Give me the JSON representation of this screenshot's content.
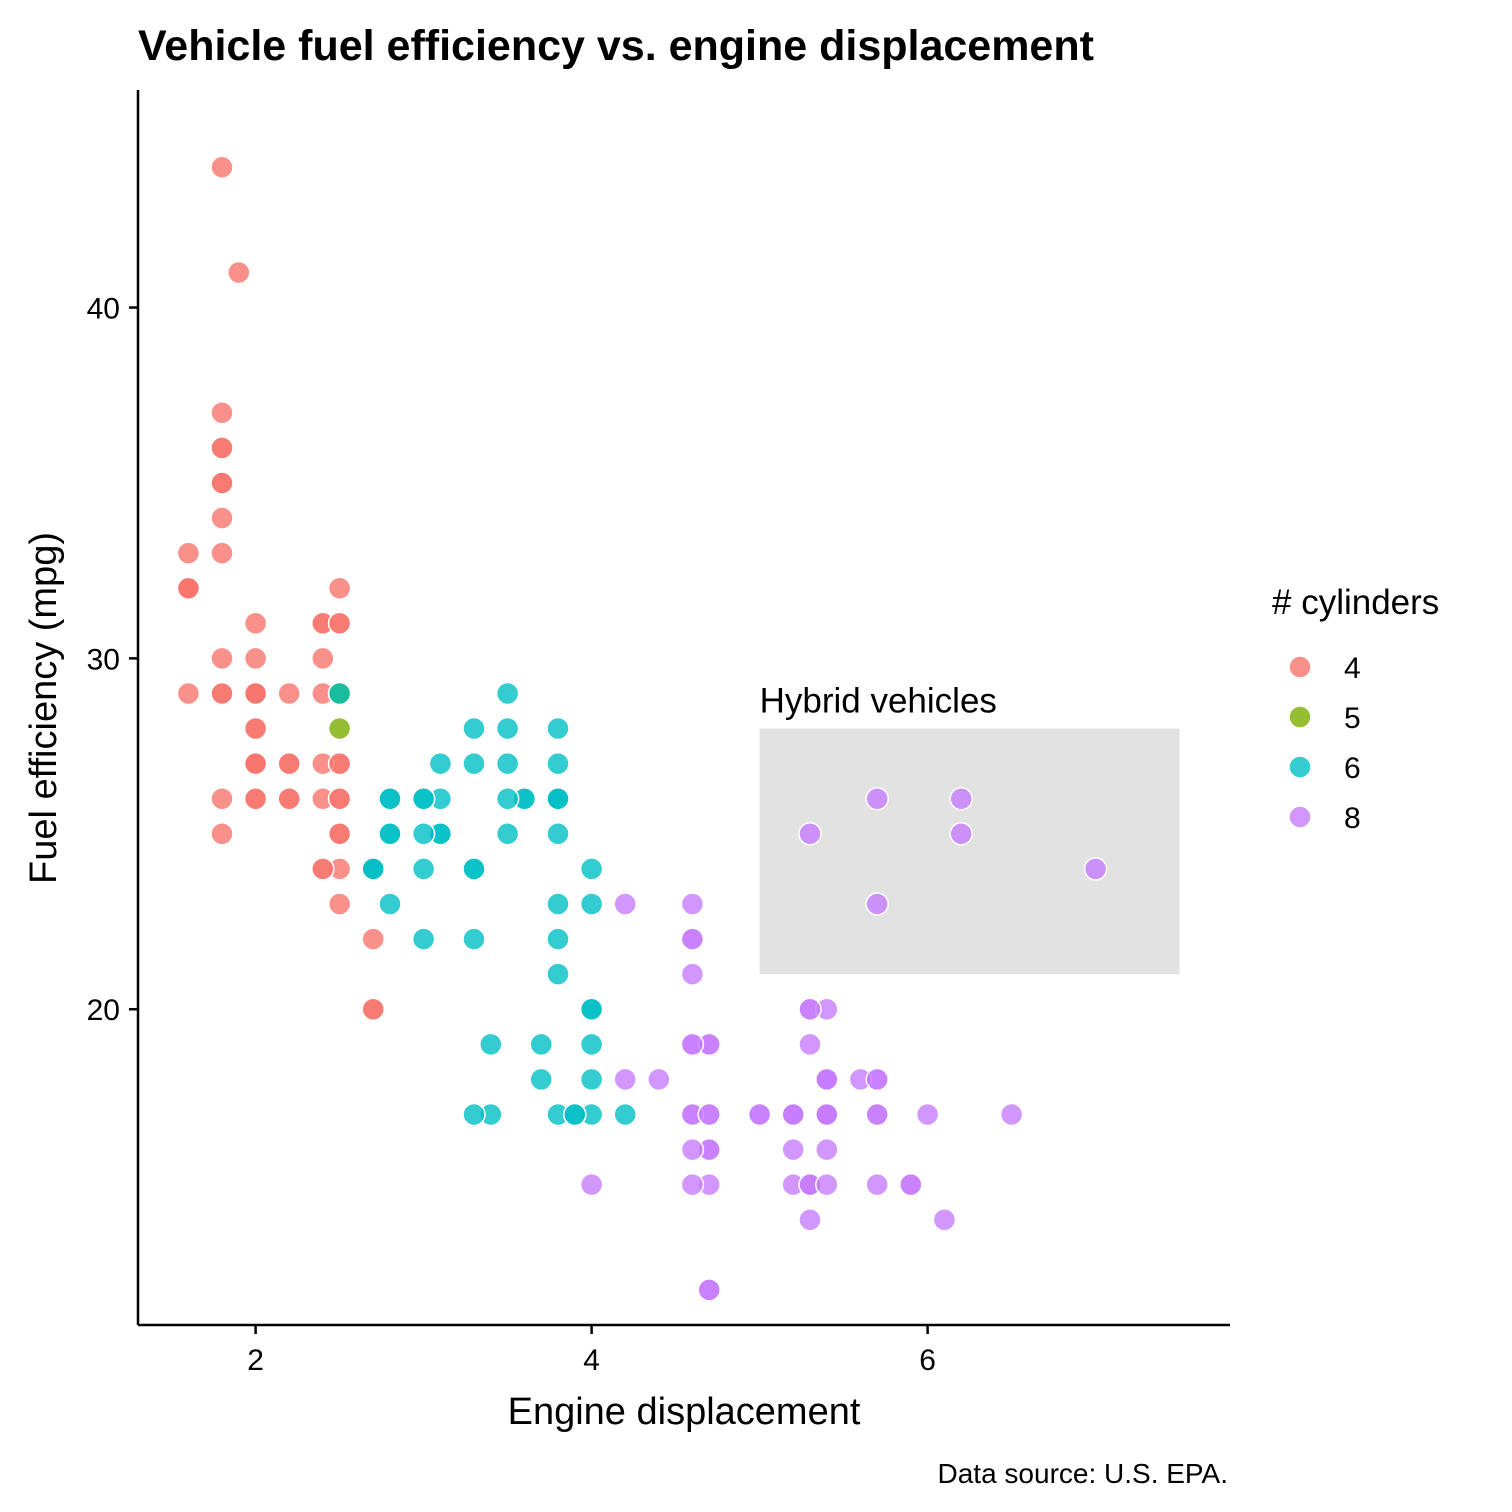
{
  "chart_data": {
    "type": "scatter",
    "title": "Vehicle fuel efficiency vs. engine displacement",
    "xlabel": "Engine displacement",
    "ylabel": "Fuel efficiency (mpg)",
    "caption": "Data source: U.S. EPA.",
    "xlim": [
      1.3,
      7.8
    ],
    "ylim": [
      11.0,
      46.2
    ],
    "xticks": [
      2,
      4,
      6
    ],
    "yticks": [
      20,
      30,
      40
    ],
    "grid": false,
    "legend": {
      "title": "# cylinders",
      "position": "right",
      "entries": [
        "4",
        "5",
        "6",
        "8"
      ]
    },
    "colors": {
      "4": "#F8766D",
      "5": "#7CAE00",
      "6": "#00BFC4",
      "8": "#C77CFF"
    },
    "annotation": {
      "label": "Hybrid vehicles",
      "x_range": [
        5.0,
        7.5
      ],
      "y_range": [
        21,
        28
      ],
      "fill": "#e2e2e2"
    },
    "series": [
      {
        "name": "4",
        "points": [
          [
            1.8,
            29
          ],
          [
            1.8,
            29
          ],
          [
            2.0,
            31
          ],
          [
            2.0,
            30
          ],
          [
            1.8,
            26
          ],
          [
            1.8,
            25
          ],
          [
            2.0,
            28
          ],
          [
            2.0,
            27
          ],
          [
            2.0,
            28
          ],
          [
            2.0,
            26
          ],
          [
            2.2,
            26
          ],
          [
            2.2,
            27
          ],
          [
            2.4,
            30
          ],
          [
            2.4,
            31
          ],
          [
            2.4,
            31
          ],
          [
            2.4,
            26
          ],
          [
            2.5,
            27
          ],
          [
            2.5,
            25
          ],
          [
            2.5,
            25
          ],
          [
            2.5,
            24
          ],
          [
            2.5,
            23
          ],
          [
            2.5,
            26
          ],
          [
            2.4,
            24
          ],
          [
            2.5,
            32
          ],
          [
            1.6,
            33
          ],
          [
            1.6,
            32
          ],
          [
            1.6,
            32
          ],
          [
            1.6,
            29
          ],
          [
            1.6,
            32
          ],
          [
            1.8,
            34
          ],
          [
            1.8,
            36
          ],
          [
            1.8,
            36
          ],
          [
            2.0,
            29
          ],
          [
            2.0,
            26
          ],
          [
            2.0,
            27
          ],
          [
            2.0,
            27
          ],
          [
            2.4,
            29
          ],
          [
            2.4,
            27
          ],
          [
            2.2,
            29
          ],
          [
            2.2,
            27
          ],
          [
            2.2,
            26
          ],
          [
            2.5,
            26
          ],
          [
            2.5,
            27
          ],
          [
            2.7,
            20
          ],
          [
            2.7,
            22
          ],
          [
            2.7,
            20
          ],
          [
            1.8,
            44
          ],
          [
            1.9,
            41
          ],
          [
            1.8,
            37
          ],
          [
            1.8,
            35
          ],
          [
            1.8,
            35
          ],
          [
            1.8,
            33
          ],
          [
            1.8,
            30
          ],
          [
            2.0,
            29
          ],
          [
            2.0,
            29
          ],
          [
            2.5,
            31
          ],
          [
            2.5,
            31
          ],
          [
            2.4,
            24
          ]
        ]
      },
      {
        "name": "5",
        "points": [
          [
            2.5,
            29
          ],
          [
            2.5,
            29
          ],
          [
            2.5,
            28
          ],
          [
            2.5,
            29
          ]
        ]
      },
      {
        "name": "6",
        "points": [
          [
            2.8,
            26
          ],
          [
            2.8,
            26
          ],
          [
            3.1,
            27
          ],
          [
            2.8,
            25
          ],
          [
            3.1,
            25
          ],
          [
            3.1,
            26
          ],
          [
            3.1,
            25
          ],
          [
            3.8,
            27
          ],
          [
            3.8,
            26
          ],
          [
            4.0,
            24
          ],
          [
            3.3,
            24
          ],
          [
            3.3,
            22
          ],
          [
            3.3,
            24
          ],
          [
            3.8,
            22
          ],
          [
            3.8,
            21
          ],
          [
            3.8,
            23
          ],
          [
            4.0,
            23
          ],
          [
            3.8,
            26
          ],
          [
            2.5,
            29
          ],
          [
            2.8,
            25
          ],
          [
            2.7,
            24
          ],
          [
            2.7,
            24
          ],
          [
            3.0,
            26
          ],
          [
            3.0,
            26
          ],
          [
            3.0,
            25
          ],
          [
            3.0,
            24
          ],
          [
            3.5,
            29
          ],
          [
            3.5,
            28
          ],
          [
            3.5,
            25
          ],
          [
            3.6,
            26
          ],
          [
            3.6,
            26
          ],
          [
            3.5,
            27
          ],
          [
            3.5,
            26
          ],
          [
            3.8,
            28
          ],
          [
            3.8,
            26
          ],
          [
            3.3,
            28
          ],
          [
            3.3,
            27
          ],
          [
            3.8,
            25
          ],
          [
            3.7,
            19
          ],
          [
            3.7,
            18
          ],
          [
            4.0,
            20
          ],
          [
            4.0,
            19
          ],
          [
            4.0,
            18
          ],
          [
            4.2,
            17
          ],
          [
            3.4,
            17
          ],
          [
            3.4,
            19
          ],
          [
            4.0,
            17
          ],
          [
            4.0,
            20
          ],
          [
            3.3,
            17
          ],
          [
            3.8,
            17
          ],
          [
            3.9,
            17
          ],
          [
            3.9,
            17
          ],
          [
            2.8,
            23
          ],
          [
            3.0,
            22
          ],
          [
            2.7,
            24
          ]
        ]
      },
      {
        "name": "8",
        "points": [
          [
            5.7,
            26
          ],
          [
            5.7,
            23
          ],
          [
            6.2,
            26
          ],
          [
            6.2,
            25
          ],
          [
            7.0,
            24
          ],
          [
            5.3,
            25
          ],
          [
            5.3,
            15
          ],
          [
            5.7,
            18
          ],
          [
            6.5,
            17
          ],
          [
            5.2,
            17
          ],
          [
            5.2,
            15
          ],
          [
            4.7,
            12
          ],
          [
            5.2,
            16
          ],
          [
            5.9,
            15
          ],
          [
            4.7,
            12
          ],
          [
            5.2,
            17
          ],
          [
            4.7,
            17
          ],
          [
            4.7,
            19
          ],
          [
            5.3,
            15
          ],
          [
            5.3,
            15
          ],
          [
            5.4,
            17
          ],
          [
            5.4,
            16
          ],
          [
            4.6,
            17
          ],
          [
            5.4,
            18
          ],
          [
            4.6,
            22
          ],
          [
            5.4,
            17
          ],
          [
            5.4,
            18
          ],
          [
            4.2,
            18
          ],
          [
            4.4,
            18
          ],
          [
            4.6,
            19
          ],
          [
            5.4,
            17
          ],
          [
            5.4,
            18
          ],
          [
            4.6,
            17
          ],
          [
            4.7,
            16
          ],
          [
            4.7,
            16
          ],
          [
            4.7,
            19
          ],
          [
            4.7,
            15
          ],
          [
            4.6,
            15
          ],
          [
            5.7,
            17
          ],
          [
            6.1,
            14
          ],
          [
            5.3,
            20
          ],
          [
            5.3,
            19
          ],
          [
            5.4,
            20
          ],
          [
            5.4,
            15
          ],
          [
            4.0,
            15
          ],
          [
            5.6,
            18
          ],
          [
            5.7,
            15
          ],
          [
            6.0,
            17
          ],
          [
            5.9,
            15
          ],
          [
            4.6,
            23
          ],
          [
            4.6,
            21
          ],
          [
            5.3,
            14
          ],
          [
            5.7,
            18
          ],
          [
            5.0,
            17
          ],
          [
            5.0,
            17
          ],
          [
            4.6,
            22
          ],
          [
            4.2,
            23
          ],
          [
            5.4,
            17
          ],
          [
            5.7,
            17
          ],
          [
            4.6,
            16
          ],
          [
            4.7,
            17
          ],
          [
            5.2,
            17
          ],
          [
            5.3,
            20
          ],
          [
            4.6,
            19
          ]
        ]
      }
    ]
  }
}
